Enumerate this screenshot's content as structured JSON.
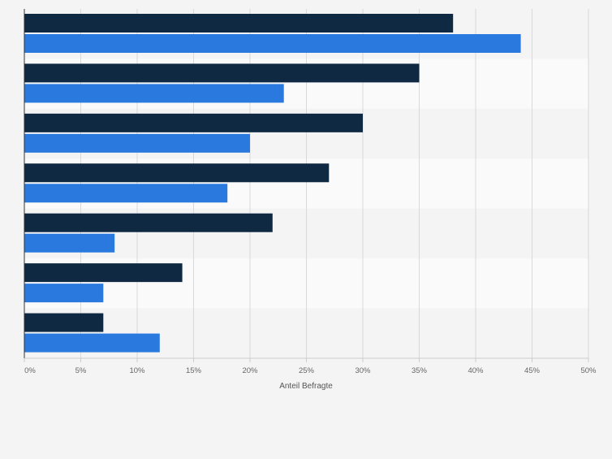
{
  "chart_data": {
    "type": "bar",
    "orientation": "horizontal",
    "categories": [
      "",
      "",
      "",
      "",
      "",
      "",
      ""
    ],
    "series": [
      {
        "values": [
          38,
          35,
          30,
          27,
          22,
          14,
          7
        ]
      },
      {
        "values": [
          44,
          23,
          20,
          18,
          8,
          7,
          12
        ]
      }
    ],
    "xlabel": "Anteil Befragte",
    "xlim": [
      0,
      50
    ],
    "ticks": [
      0,
      5,
      10,
      15,
      20,
      25,
      30,
      35,
      40,
      45,
      50
    ],
    "tick_labels": [
      "0%",
      "5%",
      "10%",
      "15%",
      "20%",
      "25%",
      "30%",
      "35%",
      "40%",
      "45%",
      "50%"
    ],
    "grid": true,
    "colors": {
      "series": [
        "#0f2942",
        "#2979de"
      ],
      "band_a": "#f4f4f5",
      "band_b": "#fafafb",
      "grid": "#d9d9dc",
      "axis": "#333333",
      "tick_text": "#666666"
    }
  }
}
